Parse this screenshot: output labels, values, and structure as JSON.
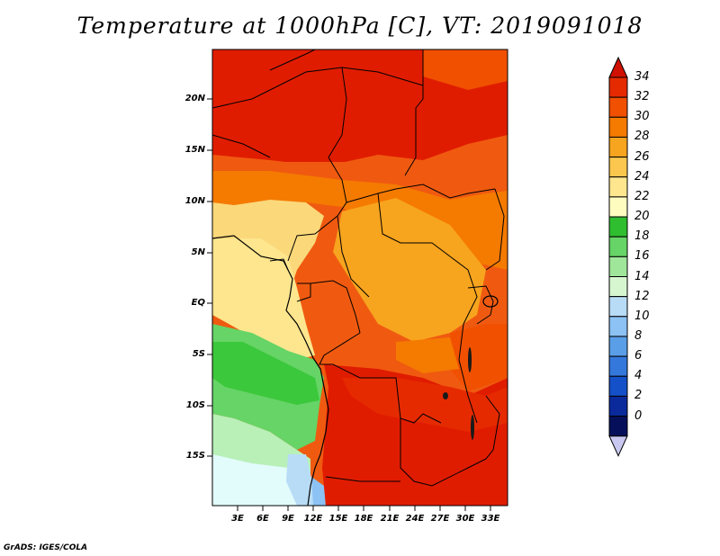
{
  "title": "Temperature at 1000hPa [C], VT: 2019091018",
  "credit": "GrADS: IGES/COLA",
  "y_ticks": [
    "20N",
    "15N",
    "10N",
    "5N",
    "EQ",
    "5S",
    "10S",
    "15S"
  ],
  "x_ticks": [
    "3E",
    "6E",
    "9E",
    "12E",
    "15E",
    "18E",
    "21E",
    "24E",
    "27E",
    "30E",
    "33E"
  ],
  "colorbar": {
    "labels": [
      "34",
      "32",
      "30",
      "28",
      "26",
      "24",
      "22",
      "20",
      "18",
      "16",
      "14",
      "12",
      "10",
      "8",
      "6",
      "4",
      "2",
      "0"
    ],
    "colors": [
      "#d01000",
      "#e62a00",
      "#f05000",
      "#f57a00",
      "#f7a41e",
      "#fbc74e",
      "#fde68e",
      "#fffcc0",
      "#2fbe2f",
      "#66d466",
      "#a0e69a",
      "#d6f6d0",
      "#b8dcf6",
      "#8cc2f4",
      "#5a9ee8",
      "#3478dc",
      "#1450c8",
      "#0a2a9c",
      "#06105a",
      "#c8c8f0"
    ]
  },
  "legend_colors": {
    "ocean_cool": "#e2fbfb",
    "ocean_mild": "#b8f0b8",
    "ocean_green": "#3cc83c",
    "land_hot": "#e01800",
    "land_warm": "#f7a41e",
    "land_mild": "#fbd87a"
  }
}
